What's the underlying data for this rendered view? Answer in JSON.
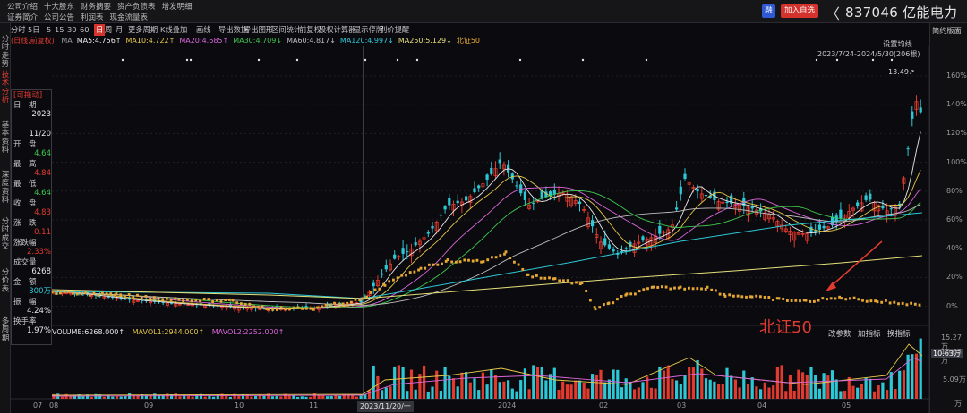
{
  "top_nav": {
    "row1": [
      "公司介绍",
      "十大股东",
      "财务摘要",
      "资产负债表",
      "增发明细"
    ],
    "row2": [
      "证券简介",
      "公司公告",
      "利润表",
      "现金流量表"
    ]
  },
  "header": {
    "rong_label": "融",
    "add_fav_label": "加入自选",
    "back_glyph": "〈",
    "stock_title": "837046 亿能电力"
  },
  "left_tabs": [
    {
      "label": "分时走势",
      "active": false
    },
    {
      "label": "技术分析",
      "active": true
    },
    {
      "label": "基本资料",
      "active": false
    },
    {
      "label": "深度资料",
      "active": false
    },
    {
      "label": "分时成交",
      "active": false
    },
    {
      "label": "分价表",
      "active": false
    },
    {
      "label": "多周期",
      "active": false
    }
  ],
  "toolbar": {
    "items": [
      "分时",
      "5日",
      "5",
      "15",
      "30",
      "60",
      "日",
      "周",
      "月",
      "更多周期",
      "K线叠加",
      "画线",
      "导出数据",
      "导出图形",
      "区间统计",
      "前复权",
      "股权计算器",
      "显示停牌",
      "别价提醒"
    ],
    "active": "日"
  },
  "ma_legend": {
    "mode": "(日线,前复权)",
    "items": [
      {
        "text": "MA",
        "color": "#9a9a9a"
      },
      {
        "text": "MA5:4.756↑",
        "color": "#e8e8e8"
      },
      {
        "text": "MA10:4.722↑",
        "color": "#e6c84a"
      },
      {
        "text": "MA20:4.685↑",
        "color": "#d966d9"
      },
      {
        "text": "MA30:4.709↓",
        "color": "#3ec84e"
      },
      {
        "text": "MA60:4.817↓",
        "color": "#bdbdbd"
      },
      {
        "text": "MA120:4.997↓",
        "color": "#2dc8d6"
      },
      {
        "text": "MA250:5.129↓",
        "color": "#e6e07a"
      },
      {
        "text": "北证50",
        "color": "#e6a832"
      }
    ]
  },
  "data_window": {
    "title": "[可拖动]",
    "rows": [
      {
        "label": "日　期",
        "value": "2023",
        "value_color": "#e6e6e6"
      },
      {
        "label": "",
        "value": "11/20",
        "value_color": "#e6e6e6"
      },
      {
        "label": "开　盘",
        "value": "4.64",
        "value_color": "#3ec84e"
      },
      {
        "label": "最　高",
        "value": "4.84",
        "value_color": "#e23a2e"
      },
      {
        "label": "最　低",
        "value": "4.64",
        "value_color": "#3ec84e"
      },
      {
        "label": "收　盘",
        "value": "4.83",
        "value_color": "#e23a2e"
      },
      {
        "label": "涨　跌",
        "value": "0.11",
        "value_color": "#e23a2e"
      },
      {
        "label": "涨跌幅",
        "value": "2.33%",
        "value_color": "#e23a2e"
      },
      {
        "label": "成交量",
        "value": "6268",
        "value_color": "#e6e6e6"
      },
      {
        "label": "金　额",
        "value": "300万",
        "value_color": "#2dc8d6"
      },
      {
        "label": "振　幅",
        "value": "4.24%",
        "value_color": "#e6e6e6"
      },
      {
        "label": "换手率",
        "value": "1.97%",
        "value_color": "#e6e6e6"
      }
    ]
  },
  "right_panel": {
    "brief_label": "简约版面",
    "setting_ma": "设置均线",
    "date_range": "2023/7/24-2024/5/30(206根)",
    "high_label": "13.49↗",
    "price_axis": [
      "160%",
      "140%",
      "120%",
      "100%",
      "80%",
      "60%",
      "40%",
      "20%",
      "0%"
    ],
    "volume_axis": [
      "15.27万",
      "10.63万",
      "5.09万",
      "万"
    ],
    "current_volume_tag": "10.63万"
  },
  "volume_legend": {
    "volume": "VOLUME:6268.000↑",
    "mavol1": "MAVOL1:2944.000↑",
    "mavol2": "MAVOL2:2252.000↑"
  },
  "volume_tools": [
    "改参数",
    "加指标",
    "换指标"
  ],
  "annotation": {
    "text": "北证50"
  },
  "x_axis": {
    "labels": [
      "07",
      "08",
      "09",
      "10",
      "11",
      "2024",
      "02",
      "03",
      "04",
      "05"
    ],
    "crosshair_date": "2023/11/20/一"
  },
  "colors": {
    "up": "#e23a2e",
    "down": "#2dc8d6",
    "bz50": "#e6a832",
    "accent": "#d4322d"
  }
}
